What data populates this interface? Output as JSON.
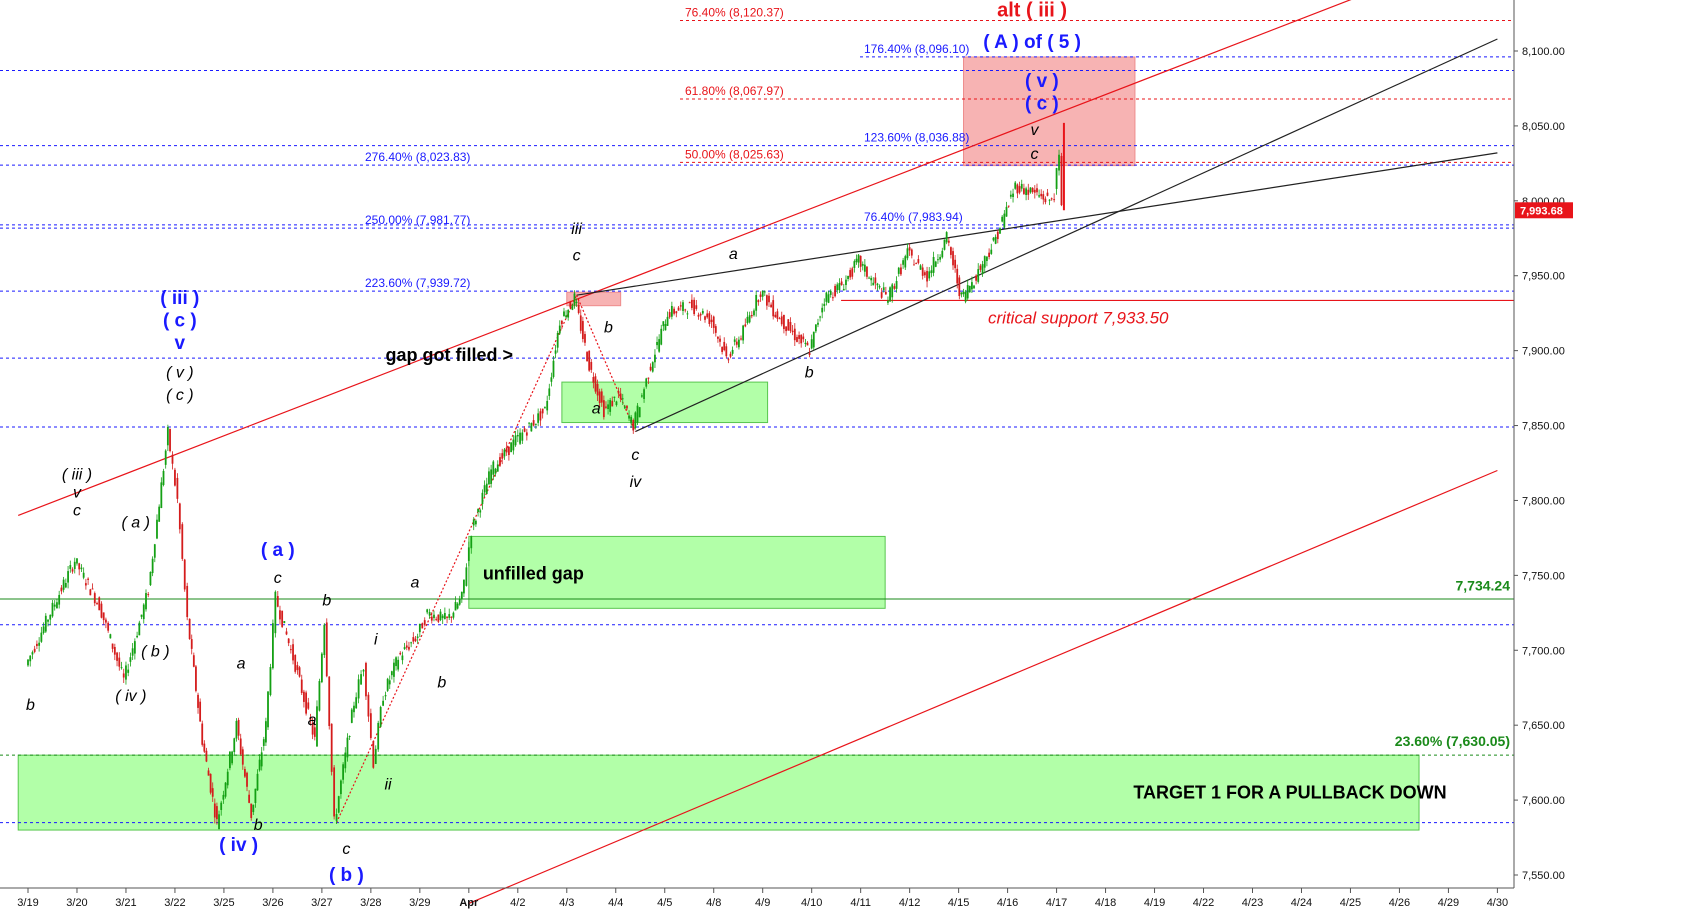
{
  "chart_data": {
    "type": "line",
    "title": "",
    "xlabel": "",
    "ylabel": "",
    "ylim": [
      7531,
      8138
    ],
    "y_ticks": [
      "7,550.00",
      "7,600.00",
      "7,650.00",
      "7,700.00",
      "7,750.00",
      "7,800.00",
      "7,850.00",
      "7,900.00",
      "7,950.00",
      "8,000.00",
      "8,050.00",
      "8,100.00"
    ],
    "x_ticks": [
      "3/19",
      "3/20",
      "3/21",
      "3/22",
      "3/25",
      "3/26",
      "3/27",
      "3/28",
      "3/29",
      "Apr",
      "4/2",
      "4/3",
      "4/4",
      "4/5",
      "4/8",
      "4/9",
      "4/10",
      "4/11",
      "4/12",
      "4/15",
      "4/16",
      "4/17",
      "4/18",
      "4/19",
      "4/22",
      "4/23",
      "4/24",
      "4/25",
      "4/26",
      "4/29",
      "4/30"
    ],
    "grid": false,
    "last_price": {
      "label": "7,993.68",
      "value": 7993.68,
      "color": "#e8141a"
    },
    "price_series": [
      [
        0,
        7690
      ],
      [
        1,
        7760
      ],
      [
        1.5,
        7730
      ],
      [
        2,
        7680
      ],
      [
        2.5,
        7740
      ],
      [
        2.9,
        7845
      ],
      [
        3.1,
        7800
      ],
      [
        3.3,
        7720
      ],
      [
        3.6,
        7640
      ],
      [
        3.9,
        7585
      ],
      [
        4.3,
        7650
      ],
      [
        4.6,
        7590
      ],
      [
        4.9,
        7650
      ],
      [
        5.1,
        7735
      ],
      [
        5.5,
        7690
      ],
      [
        5.9,
        7640
      ],
      [
        6.1,
        7720
      ],
      [
        6.3,
        7585
      ],
      [
        6.7,
        7665
      ],
      [
        6.9,
        7690
      ],
      [
        7.1,
        7625
      ],
      [
        7.3,
        7670
      ],
      [
        7.6,
        7695
      ],
      [
        8.0,
        7710
      ],
      [
        8.2,
        7725
      ],
      [
        8.6,
        7720
      ],
      [
        8.9,
        7735
      ],
      [
        9.1,
        7780
      ],
      [
        9.5,
        7820
      ],
      [
        10.0,
        7840
      ],
      [
        10.6,
        7860
      ],
      [
        10.9,
        7920
      ],
      [
        11.2,
        7935
      ],
      [
        11.5,
        7890
      ],
      [
        11.8,
        7860
      ],
      [
        12.1,
        7870
      ],
      [
        12.4,
        7850
      ],
      [
        12.8,
        7895
      ],
      [
        13.1,
        7925
      ],
      [
        13.6,
        7930
      ],
      [
        14.0,
        7920
      ],
      [
        14.3,
        7895
      ],
      [
        14.6,
        7910
      ],
      [
        15.0,
        7940
      ],
      [
        15.3,
        7925
      ],
      [
        15.7,
        7910
      ],
      [
        16.0,
        7900
      ],
      [
        16.3,
        7935
      ],
      [
        16.7,
        7945
      ],
      [
        17.0,
        7960
      ],
      [
        17.3,
        7945
      ],
      [
        17.6,
        7935
      ],
      [
        18.0,
        7965
      ],
      [
        18.4,
        7950
      ],
      [
        18.8,
        7975
      ],
      [
        19.1,
        7935
      ],
      [
        19.4,
        7950
      ],
      [
        19.8,
        7975
      ],
      [
        20.2,
        8010
      ],
      [
        20.6,
        8005
      ],
      [
        20.9,
        8000
      ],
      [
        21.0,
        8005
      ],
      [
        21.1,
        8030
      ],
      [
        21.15,
        7993.68
      ]
    ],
    "fib_levels": [
      {
        "label": "76.40% (8,120.37)",
        "value": 8120.37,
        "color": "#e8141a"
      },
      {
        "label": "176.40% (8,096.10)",
        "value": 8096.1,
        "color": "#1a1aff"
      },
      {
        "label": "61.80% (8,067.97)",
        "value": 8067.97,
        "color": "#e8141a"
      },
      {
        "label": "123.60% (8,036.88)",
        "value": 8036.88,
        "color": "#1a1aff"
      },
      {
        "label": "50.00% (8,025.63)",
        "value": 8025.63,
        "color": "#e8141a"
      },
      {
        "label": "276.40% (8,023.83)",
        "value": 8023.83,
        "color": "#1a1aff"
      },
      {
        "label": "76.40% (7,983.94)",
        "value": 7983.94,
        "color": "#1a1aff"
      },
      {
        "label": "250.00% (7,981.77)",
        "value": 7981.77,
        "color": "#1a1aff"
      },
      {
        "label": "223.60% (7,939.72)",
        "value": 7939.72,
        "color": "#1a1aff"
      }
    ],
    "unlabeled_levels": [
      8087,
      7895,
      7849,
      7717,
      7585
    ],
    "support": {
      "label": "critical support 7,933.50",
      "value": 7933.5
    },
    "horizontal_line": {
      "label": "7,734.24",
      "value": 7734.24
    },
    "fib_lower": {
      "label": "23.60% (7,630.05)",
      "value": 7630.05
    },
    "zones": [
      {
        "name": "unfilled-gap-zone",
        "label": "unfilled gap",
        "x0": 9.0,
        "x1": 17.5,
        "y0": 7728,
        "y1": 7776,
        "color": "#b2ffa8"
      },
      {
        "name": "gap-filled-zone",
        "label": "",
        "x0": 10.9,
        "x1": 15.1,
        "y0": 7852,
        "y1": 7879,
        "color": "#b2ffa8"
      },
      {
        "name": "target-zone",
        "label": "TARGET 1 FOR A PULLBACK DOWN",
        "x0": -0.2,
        "x1": 28.4,
        "y0": 7580,
        "y1": 7630,
        "color": "#b2ffa8"
      },
      {
        "name": "resistance-zone",
        "label": "",
        "x0": 19.1,
        "x1": 22.6,
        "y0": 8023.5,
        "y1": 8096,
        "color": "#f7b3b3"
      },
      {
        "name": "small-red-zone",
        "label": "",
        "x0": 11.0,
        "x1": 12.1,
        "y0": 7930,
        "y1": 7939,
        "color": "#f7b3b3"
      }
    ],
    "trendlines": [
      {
        "color": "#e8141a",
        "points": [
          [
            -0.2,
            7790
          ],
          [
            27.3,
            8138
          ]
        ]
      },
      {
        "color": "#e8141a",
        "points": [
          [
            9.0,
            7531
          ],
          [
            30.0,
            7820
          ]
        ]
      },
      {
        "color": "#222222",
        "points": [
          [
            11.2,
            7937
          ],
          [
            30.0,
            8032
          ]
        ]
      },
      {
        "color": "#222222",
        "points": [
          [
            12.4,
            7846
          ],
          [
            30.0,
            8108
          ]
        ]
      },
      {
        "color": "#e8141a",
        "dashed": true,
        "points": [
          [
            6.3,
            7585
          ],
          [
            11.2,
            7937
          ]
        ]
      },
      {
        "color": "#e8141a",
        "dashed": true,
        "points": [
          [
            11.2,
            7937
          ],
          [
            12.4,
            7846
          ]
        ]
      }
    ],
    "annotations": [
      {
        "name": "gap-got-filled-label",
        "text": "gap got filled >",
        "style": "anno",
        "x": 7.3,
        "y": 7893
      },
      {
        "name": "critical-support-label",
        "text": "critical support 7,933.50",
        "style": "red",
        "x": 19.6,
        "y": 7918
      },
      {
        "name": "target-line-label",
        "text": "7,734.24",
        "style": "green",
        "x": 30.0,
        "y": 7740
      },
      {
        "name": "fib-lower-label",
        "text": "23.60% (7,630.05)",
        "style": "green",
        "x": 30.0,
        "y": 7636
      },
      {
        "name": "alt-iii-label",
        "text": "alt ( iii )",
        "style": "red-big",
        "x": 20.5,
        "y": 8123
      },
      {
        "name": "a-of-5-label",
        "text": "( A )  of ( 5 )",
        "style": "blue-big",
        "x": 20.5,
        "y": 8102
      },
      {
        "name": "wave-v-blue",
        "text": "( v )",
        "style": "blue",
        "x": 20.7,
        "y": 8076
      },
      {
        "name": "wave-c-blue-top",
        "text": "( c )",
        "style": "blue",
        "x": 20.7,
        "y": 8061
      },
      {
        "name": "wave-v-small-top",
        "text": "v",
        "style": "black",
        "x": 20.55,
        "y": 8044
      },
      {
        "name": "wave-c-small-top",
        "text": "c",
        "style": "black",
        "x": 20.55,
        "y": 8028
      },
      {
        "name": "wave-iii-blue",
        "text": "( iii )",
        "style": "blue",
        "x": 3.1,
        "y": 7931
      },
      {
        "name": "wave-c-blue-left",
        "text": "( c )",
        "style": "blue",
        "x": 3.1,
        "y": 7916
      },
      {
        "name": "wave-v-blue-left",
        "text": "v",
        "style": "blue",
        "x": 3.1,
        "y": 7901
      },
      {
        "name": "wave-v-paren",
        "text": "( v )",
        "style": "black",
        "x": 3.1,
        "y": 7882
      },
      {
        "name": "wave-c-paren",
        "text": "( c )",
        "style": "black",
        "x": 3.1,
        "y": 7867
      },
      {
        "name": "wave-iii-paren",
        "text": "( iii )",
        "style": "black",
        "x": 1.0,
        "y": 7814
      },
      {
        "name": "wave-v-small-left",
        "text": "v",
        "style": "black",
        "x": 1.0,
        "y": 7802
      },
      {
        "name": "wave-c-small-left",
        "text": "c",
        "style": "black",
        "x": 1.0,
        "y": 7790
      },
      {
        "name": "wave-a-paren",
        "text": "( a )",
        "style": "black",
        "x": 2.2,
        "y": 7782
      },
      {
        "name": "wave-b-paren",
        "text": "( b )",
        "style": "black",
        "x": 2.6,
        "y": 7696
      },
      {
        "name": "wave-iv-paren",
        "text": "( iv )",
        "style": "black",
        "x": 2.1,
        "y": 7666
      },
      {
        "name": "wave-b-far-left",
        "text": "b",
        "style": "black",
        "x": 0.05,
        "y": 7660
      },
      {
        "name": "wave-a-blue",
        "text": "( a )",
        "style": "blue",
        "x": 5.1,
        "y": 7763
      },
      {
        "name": "wave-c-after-a",
        "text": "c",
        "style": "black",
        "x": 5.1,
        "y": 7745
      },
      {
        "name": "wave-a-mid",
        "text": "a",
        "style": "black",
        "x": 4.35,
        "y": 7688
      },
      {
        "name": "wave-a-low",
        "text": "a",
        "style": "black",
        "x": 5.8,
        "y": 7650
      },
      {
        "name": "wave-b-mid",
        "text": "b",
        "style": "black",
        "x": 6.1,
        "y": 7730
      },
      {
        "name": "wave-b-low",
        "text": "b",
        "style": "black",
        "x": 4.7,
        "y": 7580
      },
      {
        "name": "wave-iv-blue",
        "text": "( iv )",
        "style": "blue",
        "x": 4.3,
        "y": 7566
      },
      {
        "name": "wave-c-bottom",
        "text": "c",
        "style": "black",
        "x": 6.5,
        "y": 7564
      },
      {
        "name": "wave-b-blue",
        "text": "( b )",
        "style": "blue",
        "x": 6.5,
        "y": 7546
      },
      {
        "name": "wave-i",
        "text": "i",
        "style": "black",
        "x": 7.1,
        "y": 7704
      },
      {
        "name": "wave-ii",
        "text": "ii",
        "style": "black",
        "x": 7.35,
        "y": 7607
      },
      {
        "name": "wave-a-gap",
        "text": "a",
        "style": "black",
        "x": 7.9,
        "y": 7742
      },
      {
        "name": "wave-b-gap",
        "text": "b",
        "style": "black",
        "x": 8.45,
        "y": 7675
      },
      {
        "name": "wave-iii-small",
        "text": "iii",
        "style": "black",
        "x": 11.2,
        "y": 7978
      },
      {
        "name": "wave-c-iii",
        "text": "c",
        "style": "black",
        "x": 11.2,
        "y": 7960
      },
      {
        "name": "wave-b-small",
        "text": "b",
        "style": "black",
        "x": 11.85,
        "y": 7912
      },
      {
        "name": "wave-a-small",
        "text": "a",
        "style": "black",
        "x": 11.6,
        "y": 7858
      },
      {
        "name": "wave-c-small",
        "text": "c",
        "style": "black",
        "x": 12.4,
        "y": 7827
      },
      {
        "name": "wave-iv-small",
        "text": "iv",
        "style": "black",
        "x": 12.4,
        "y": 7809
      },
      {
        "name": "wave-a-top",
        "text": "a",
        "style": "black",
        "x": 14.4,
        "y": 7961
      },
      {
        "name": "wave-b-bottom",
        "text": "b",
        "style": "black",
        "x": 15.95,
        "y": 7882
      }
    ]
  }
}
